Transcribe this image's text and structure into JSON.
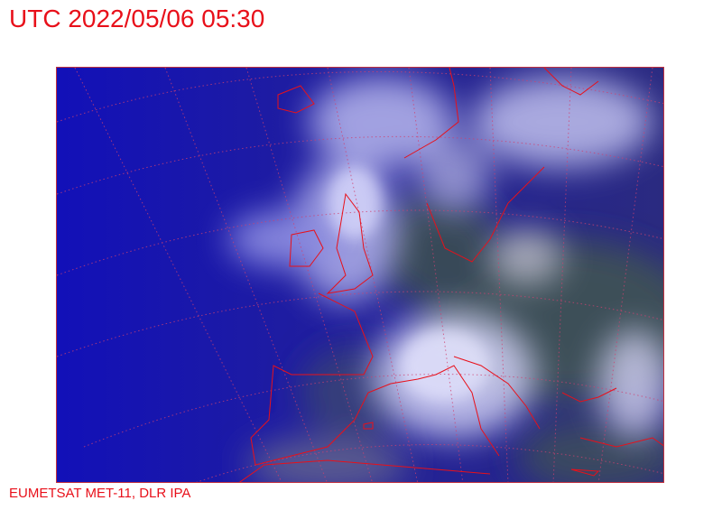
{
  "header": {
    "title": "UTC 2022/05/06 05:30"
  },
  "footer": {
    "credit": "EUMETSAT MET-11, DLR IPA"
  },
  "map": {
    "type": "satellite-image",
    "region": "Europe",
    "colors": {
      "ocean": "#1a18a8",
      "cloud": "#c8c8f0",
      "land": "#3a4a50",
      "overlay_lines": "#e8101a"
    }
  }
}
